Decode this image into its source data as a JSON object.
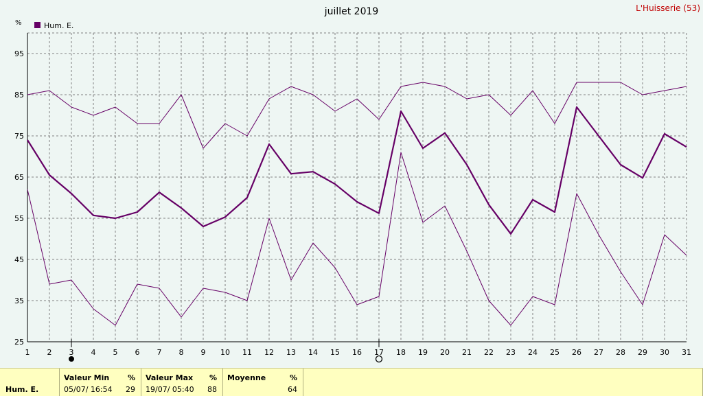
{
  "header": {
    "title": "juillet 2019",
    "station": "L'Huisserie (53)",
    "unit": "%"
  },
  "legend": {
    "label": "Hum. E.",
    "color": "#660066"
  },
  "colors": {
    "series": "#660066",
    "grid": "#808080",
    "background": "#eef6f3",
    "stats_bg": "#ffffc0"
  },
  "chart_data": {
    "type": "line",
    "title": "juillet 2019",
    "ylabel": "%",
    "xlabel": "",
    "ylim": [
      25,
      100
    ],
    "yticks": [
      25,
      35,
      45,
      55,
      65,
      75,
      85,
      95
    ],
    "grid": true,
    "legend_position": "top-left",
    "x": [
      1,
      2,
      3,
      4,
      5,
      6,
      7,
      8,
      9,
      10,
      11,
      12,
      13,
      14,
      15,
      16,
      17,
      18,
      19,
      20,
      21,
      22,
      23,
      24,
      25,
      26,
      27,
      28,
      29,
      30,
      31
    ],
    "series": [
      {
        "name": "Hum. E.",
        "role": "mean",
        "values": [
          74,
          65.5,
          61,
          55.7,
          55,
          56.5,
          61.3,
          57.5,
          53,
          55.3,
          60,
          73,
          65.8,
          66.3,
          63.3,
          59,
          56.2,
          81,
          72,
          75.7,
          68,
          58.3,
          51.2,
          59.5,
          56.5,
          82,
          75,
          68,
          64.8,
          75.5,
          72.3
        ]
      },
      {
        "role": "max",
        "values": [
          85,
          86,
          82,
          80,
          82,
          78,
          78,
          85,
          72,
          78,
          75,
          84,
          87,
          85,
          81,
          84,
          79,
          87,
          88,
          87,
          84,
          85,
          80,
          86,
          78,
          88,
          88,
          88,
          85,
          86,
          87
        ]
      },
      {
        "role": "min",
        "values": [
          62,
          39,
          40,
          33,
          29,
          39,
          38,
          31,
          38,
          37,
          35,
          55,
          40,
          49,
          43,
          34,
          36,
          71,
          54,
          58,
          47,
          35,
          29,
          36,
          34,
          61,
          51,
          42,
          34,
          51,
          46
        ]
      }
    ],
    "markers": [
      {
        "x": 3,
        "symbol": "filled-circle"
      },
      {
        "x": 17,
        "symbol": "open-circle"
      }
    ]
  },
  "stats": {
    "series_label": "Hum. E.",
    "min_header": "Valeur Min",
    "min_unit": "%",
    "min_date": "05/07/  16:54",
    "min_value": "29",
    "max_header": "Valeur Max",
    "max_unit": "%",
    "max_date": "19/07/  05:40",
    "max_value": "88",
    "mean_header": "Moyenne",
    "mean_unit": "%",
    "mean_value": "64"
  }
}
